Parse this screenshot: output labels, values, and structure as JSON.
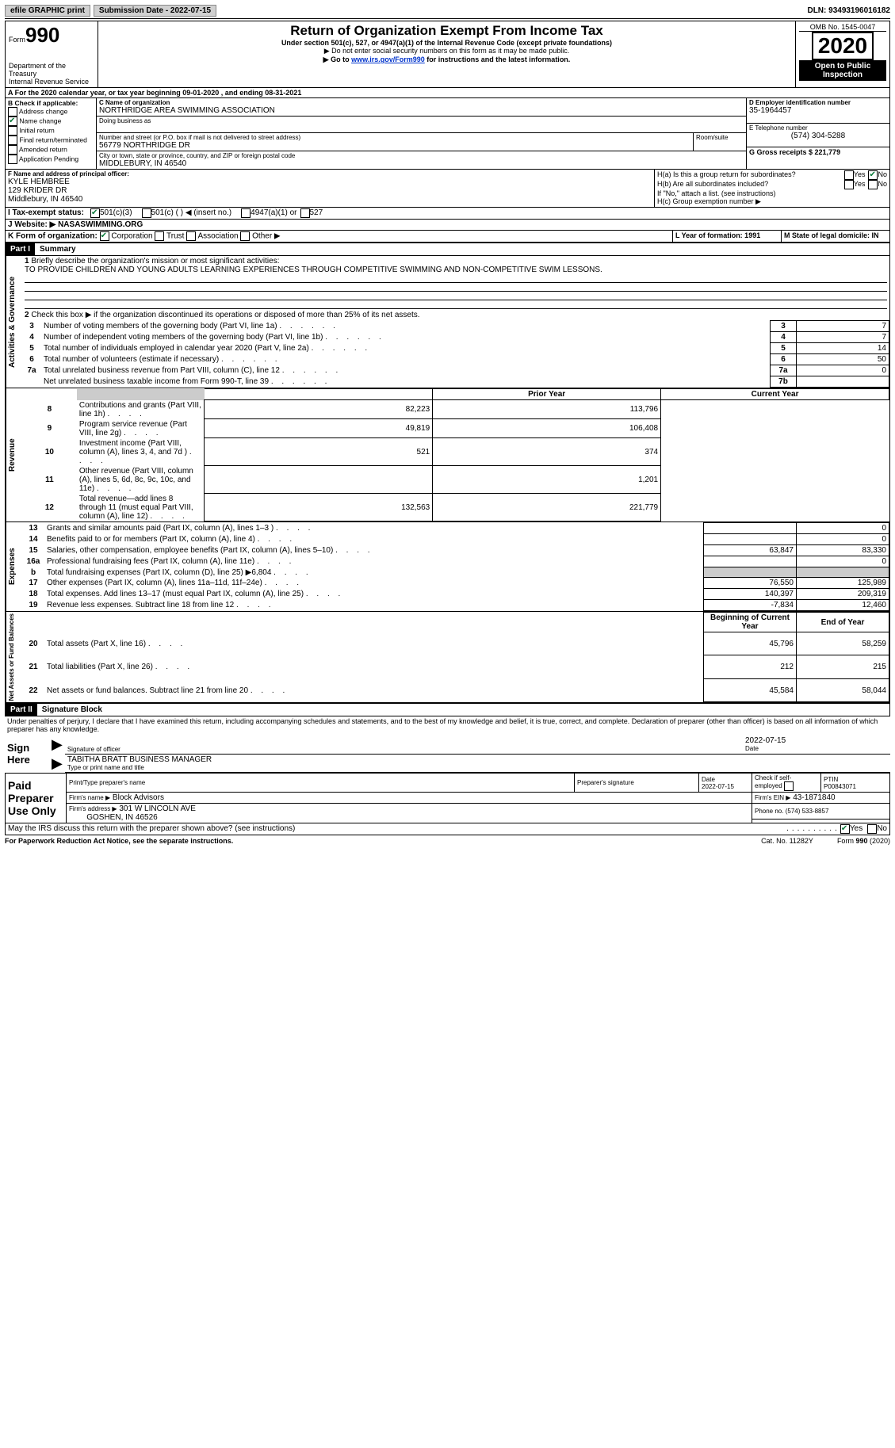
{
  "topbar": {
    "efile_label": "efile GRAPHIC print",
    "submission_label": "Submission Date - 2022-07-15",
    "dln_label": "DLN: 93493196016182"
  },
  "header": {
    "form_label": "Form",
    "form_no": "990",
    "dept": "Department of the Treasury",
    "irs": "Internal Revenue Service",
    "title": "Return of Organization Exempt From Income Tax",
    "subtitle": "Under section 501(c), 527, or 4947(a)(1) of the Internal Revenue Code (except private foundations)",
    "note1": "▶ Do not enter social security numbers on this form as it may be made public.",
    "note2_pre": "▶ Go to ",
    "note2_link": "www.irs.gov/Form990",
    "note2_post": " for instructions and the latest information.",
    "omb": "OMB No. 1545-0047",
    "year": "2020",
    "inspection": "Open to Public Inspection"
  },
  "period": {
    "label_a": "A For the 2020 calendar year, or tax year beginning 09-01-2020   , and ending 08-31-2021"
  },
  "sectionB": {
    "label": "B Check if applicable:",
    "address": "Address change",
    "name": "Name change",
    "initial": "Initial return",
    "final": "Final return/terminated",
    "amended": "Amended return",
    "pending": "Application Pending"
  },
  "sectionC": {
    "label": "C Name of organization",
    "org": "NORTHRIDGE AREA SWIMMING ASSOCIATION",
    "dba_label": "Doing business as",
    "street_label": "Number and street (or P.O. box if mail is not delivered to street address)",
    "room_label": "Room/suite",
    "street": "56779 NORTHRIDGE DR",
    "city_label": "City or town, state or province, country, and ZIP or foreign postal code",
    "city": "MIDDLEBURY, IN  46540"
  },
  "sectionD": {
    "label": "D Employer identification number",
    "ein": "35-1964457"
  },
  "sectionE": {
    "label": "E Telephone number",
    "phone": "(574) 304-5288"
  },
  "sectionG": {
    "label": "G Gross receipts $ 221,779"
  },
  "sectionF": {
    "label": "F Name and address of principal officer:",
    "name": "KYLE HEMBREE",
    "addr1": "129 KRIDER DR",
    "addr2": "Middlebury, IN  46540"
  },
  "sectionH": {
    "a_label": "H(a)  Is this a group return for subordinates?",
    "b_label": "H(b)  Are all subordinates included?",
    "b_note": "If \"No,\" attach a list. (see instructions)",
    "c_label": "H(c)  Group exemption number ▶",
    "yes": "Yes",
    "no": "No"
  },
  "sectionI": {
    "label": "I    Tax-exempt status:",
    "o1": "501(c)(3)",
    "o2": "501(c) (   ) ◀ (insert no.)",
    "o3": "4947(a)(1) or",
    "o4": "527"
  },
  "sectionJ": {
    "label": "J   Website: ▶   NASASWIMMING.ORG"
  },
  "sectionK": {
    "label": "K Form of organization:",
    "corp": "Corporation",
    "trust": "Trust",
    "assoc": "Association",
    "other": "Other ▶"
  },
  "sectionL": {
    "label": "L Year of formation: 1991"
  },
  "sectionM": {
    "label": "M State of legal domicile: IN"
  },
  "part1": {
    "title": "Part I",
    "heading": "Summary",
    "q1_label": "1",
    "q1_text": "Briefly describe the organization's mission or most significant activities:",
    "q1_ans": "TO PROVIDE CHILDREN AND YOUNG ADULTS LEARNING EXPERIENCES THROUGH COMPETITIVE SWIMMING AND NON-COMPETITIVE SWIM LESSONS.",
    "q2_text": "Check this box ▶      if the organization discontinued its operations or disposed of more than 25% of its net assets.",
    "sidelabels": {
      "gov": "Activities & Governance",
      "rev": "Revenue",
      "exp": "Expenses",
      "net": "Net Assets or Fund Balances"
    },
    "cols": {
      "prior": "Prior Year",
      "current": "Current Year",
      "boy": "Beginning of Current Year",
      "eoy": "End of Year"
    },
    "rows": [
      {
        "n": "3",
        "t": "Number of voting members of the governing body (Part VI, line 1a)",
        "box": "3",
        "v": "7"
      },
      {
        "n": "4",
        "t": "Number of independent voting members of the governing body (Part VI, line 1b)",
        "box": "4",
        "v": "7"
      },
      {
        "n": "5",
        "t": "Total number of individuals employed in calendar year 2020 (Part V, line 2a)",
        "box": "5",
        "v": "14"
      },
      {
        "n": "6",
        "t": "Total number of volunteers (estimate if necessary)",
        "box": "6",
        "v": "50"
      },
      {
        "n": "7a",
        "t": "Total unrelated business revenue from Part VIII, column (C), line 12",
        "box": "7a",
        "v": "0"
      },
      {
        "n": "",
        "t": "Net unrelated business taxable income from Form 990-T, line 39",
        "box": "7b",
        "v": ""
      }
    ],
    "rev": [
      {
        "n": "8",
        "t": "Contributions and grants (Part VIII, line 1h)",
        "p": "82,223",
        "c": "113,796"
      },
      {
        "n": "9",
        "t": "Program service revenue (Part VIII, line 2g)",
        "p": "49,819",
        "c": "106,408"
      },
      {
        "n": "10",
        "t": "Investment income (Part VIII, column (A), lines 3, 4, and 7d )",
        "p": "521",
        "c": "374"
      },
      {
        "n": "11",
        "t": "Other revenue (Part VIII, column (A), lines 5, 6d, 8c, 9c, 10c, and 11e)",
        "p": "",
        "c": "1,201"
      },
      {
        "n": "12",
        "t": "Total revenue—add lines 8 through 11 (must equal Part VIII, column (A), line 12)",
        "p": "132,563",
        "c": "221,779"
      }
    ],
    "exp": [
      {
        "n": "13",
        "t": "Grants and similar amounts paid (Part IX, column (A), lines 1–3 )",
        "p": "",
        "c": "0"
      },
      {
        "n": "14",
        "t": "Benefits paid to or for members (Part IX, column (A), line 4)",
        "p": "",
        "c": "0"
      },
      {
        "n": "15",
        "t": "Salaries, other compensation, employee benefits (Part IX, column (A), lines 5–10)",
        "p": "63,847",
        "c": "83,330"
      },
      {
        "n": "16a",
        "t": "Professional fundraising fees (Part IX, column (A), line 11e)",
        "p": "",
        "c": "0"
      },
      {
        "n": "b",
        "t": "Total fundraising expenses (Part IX, column (D), line 25) ▶6,804",
        "p": "SHADE",
        "c": "SHADE"
      },
      {
        "n": "17",
        "t": "Other expenses (Part IX, column (A), lines 11a–11d, 11f–24e)",
        "p": "76,550",
        "c": "125,989"
      },
      {
        "n": "18",
        "t": "Total expenses. Add lines 13–17 (must equal Part IX, column (A), line 25)",
        "p": "140,397",
        "c": "209,319"
      },
      {
        "n": "19",
        "t": "Revenue less expenses. Subtract line 18 from line 12",
        "p": "-7,834",
        "c": "12,460"
      }
    ],
    "net": [
      {
        "n": "20",
        "t": "Total assets (Part X, line 16)",
        "p": "45,796",
        "c": "58,259"
      },
      {
        "n": "21",
        "t": "Total liabilities (Part X, line 26)",
        "p": "212",
        "c": "215"
      },
      {
        "n": "22",
        "t": "Net assets or fund balances. Subtract line 21 from line 20",
        "p": "45,584",
        "c": "58,044"
      }
    ]
  },
  "part2": {
    "title": "Part II",
    "heading": "Signature Block",
    "declaration": "Under penalties of perjury, I declare that I have examined this return, including accompanying schedules and statements, and to the best of my knowledge and belief, it is true, correct, and complete. Declaration of preparer (other than officer) is based on all information of which preparer has any knowledge.",
    "sign_here": "Sign Here",
    "sig_officer": "Signature of officer",
    "sig_date": "2022-07-15",
    "date_label": "Date",
    "officer_name": "TABITHA BRATT  BUSINESS MANAGER",
    "officer_type": "Type or print name and title",
    "paid": "Paid Preparer Use Only",
    "prep_name_label": "Print/Type preparer's name",
    "prep_sig_label": "Preparer's signature",
    "prep_date_label": "Date",
    "prep_date": "2022-07-15",
    "check_self": "Check       if self-employed",
    "ptin_label": "PTIN",
    "ptin": "P00843071",
    "firm_name_label": "Firm's name    ▶",
    "firm_name": "Block Advisors",
    "firm_ein_label": "Firm's EIN ▶",
    "firm_ein": "43-1871840",
    "firm_addr_label": "Firm's address ▶",
    "firm_addr1": "301 W LINCOLN AVE",
    "firm_addr2": "GOSHEN, IN  46526",
    "phone_label": "Phone no. (574) 533-8857",
    "discuss": "May the IRS discuss this return with the preparer shown above? (see instructions)",
    "yes": "Yes",
    "no": "No"
  },
  "footer": {
    "pra": "For Paperwork Reduction Act Notice, see the separate instructions.",
    "cat": "Cat. No. 11282Y",
    "form": "Form 990 (2020)"
  }
}
